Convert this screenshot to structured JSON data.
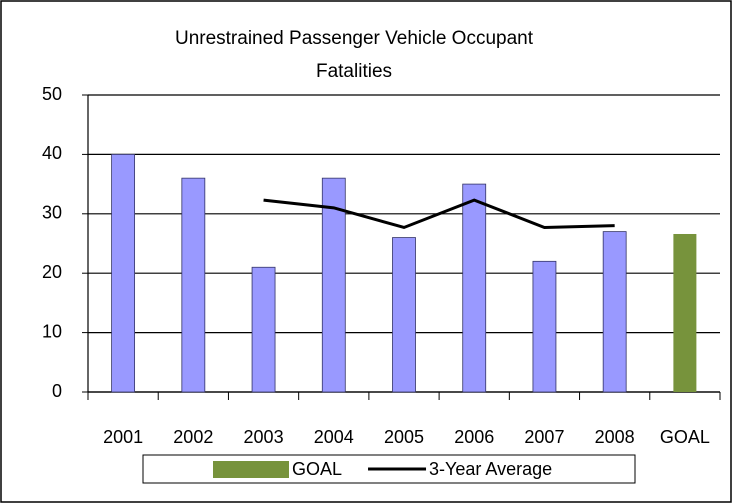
{
  "chart_data": {
    "type": "bar",
    "title": "Unrestrained Passenger Vehicle Occupant Fatalities",
    "categories": [
      "2001",
      "2002",
      "2003",
      "2004",
      "2005",
      "2006",
      "2007",
      "2008",
      "GOAL"
    ],
    "series": [
      {
        "color": "#9999ff",
        "values": [
          40,
          36,
          21,
          36,
          26,
          35,
          22,
          27,
          null
        ]
      },
      {
        "name": "GOAL",
        "color": "#77933c",
        "values": [
          null,
          null,
          null,
          null,
          null,
          null,
          null,
          null,
          26.6
        ]
      },
      {
        "name": "3-Year Average",
        "type": "line",
        "color": "#000000",
        "values": [
          null,
          null,
          32.3,
          31,
          27.7,
          32.3,
          27.7,
          28,
          null
        ]
      }
    ],
    "ylim": [
      0,
      50
    ],
    "yticks": [
      0,
      10,
      20,
      30,
      40,
      50
    ],
    "grid": true,
    "legend": "bottom"
  }
}
